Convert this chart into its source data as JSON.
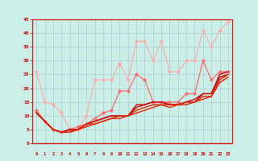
{
  "background_color": "#cceee8",
  "grid_color": "#aacccc",
  "xlabel_color": "#cc0000",
  "tick_color": "#cc0000",
  "xlim": [
    -0.5,
    23.5
  ],
  "ylim": [
    0,
    45
  ],
  "yticks": [
    0,
    5,
    10,
    15,
    20,
    25,
    30,
    35,
    40,
    45
  ],
  "xticks": [
    0,
    1,
    2,
    3,
    4,
    5,
    6,
    7,
    8,
    9,
    10,
    11,
    12,
    13,
    14,
    15,
    16,
    17,
    18,
    19,
    20,
    21,
    22,
    23
  ],
  "series": [
    {
      "x": [
        0,
        1,
        2,
        3,
        4,
        5,
        6,
        7,
        8,
        9,
        10,
        11,
        12,
        13,
        14,
        15,
        16,
        17,
        18,
        19,
        20,
        21,
        22,
        23
      ],
      "y": [
        26,
        15,
        14,
        11,
        5,
        5,
        10,
        23,
        23,
        23,
        29,
        23,
        37,
        37,
        30,
        37,
        26,
        26,
        30,
        30,
        41,
        35,
        41,
        44
      ],
      "color": "#ffaaaa",
      "lw": 0.8,
      "marker": "D",
      "ms": 2.0
    },
    {
      "x": [
        0,
        1,
        2,
        3,
        4,
        5,
        6,
        7,
        8,
        9,
        10,
        11,
        12,
        13,
        14,
        15,
        16,
        17,
        18,
        19,
        20,
        21,
        22,
        23
      ],
      "y": [
        12,
        8,
        5,
        4,
        5,
        6,
        7,
        9,
        11,
        12,
        19,
        19,
        25,
        23,
        15,
        15,
        15,
        15,
        18,
        18,
        30,
        23,
        26,
        26
      ],
      "color": "#ff6666",
      "lw": 0.9,
      "marker": "P",
      "ms": 2.5
    },
    {
      "x": [
        0,
        1,
        2,
        3,
        4,
        5,
        6,
        7,
        8,
        9,
        10,
        11,
        12,
        13,
        14,
        15,
        16,
        17,
        18,
        19,
        20,
        21,
        22,
        23
      ],
      "y": [
        11,
        8,
        5,
        4,
        5,
        5,
        7,
        8,
        9,
        10,
        10,
        10,
        14,
        14,
        15,
        15,
        14,
        14,
        15,
        16,
        18,
        18,
        25,
        26
      ],
      "color": "#cc0000",
      "lw": 1.0,
      "marker": null,
      "ms": 0
    },
    {
      "x": [
        0,
        1,
        2,
        3,
        4,
        5,
        6,
        7,
        8,
        9,
        10,
        11,
        12,
        13,
        14,
        15,
        16,
        17,
        18,
        19,
        20,
        21,
        22,
        23
      ],
      "y": [
        11,
        8,
        5,
        4,
        5,
        5,
        7,
        8,
        9,
        10,
        10,
        10,
        13,
        14,
        15,
        15,
        14,
        14,
        15,
        15,
        18,
        18,
        24,
        25
      ],
      "color": "#cc0000",
      "lw": 1.0,
      "marker": null,
      "ms": 0
    },
    {
      "x": [
        0,
        1,
        2,
        3,
        4,
        5,
        6,
        7,
        8,
        9,
        10,
        11,
        12,
        13,
        14,
        15,
        16,
        17,
        18,
        19,
        20,
        21,
        22,
        23
      ],
      "y": [
        11,
        8,
        5,
        4,
        4,
        5,
        7,
        7,
        8,
        9,
        10,
        10,
        12,
        13,
        14,
        14,
        14,
        14,
        15,
        15,
        17,
        17,
        23,
        25
      ],
      "color": "#dd2200",
      "lw": 1.0,
      "marker": null,
      "ms": 0
    },
    {
      "x": [
        0,
        1,
        2,
        3,
        4,
        5,
        6,
        7,
        8,
        9,
        10,
        11,
        12,
        13,
        14,
        15,
        16,
        17,
        18,
        19,
        20,
        21,
        22,
        23
      ],
      "y": [
        11,
        8,
        5,
        4,
        4,
        5,
        6,
        7,
        8,
        9,
        9,
        10,
        11,
        12,
        13,
        14,
        13,
        14,
        14,
        15,
        16,
        17,
        22,
        24
      ],
      "color": "#dd2200",
      "lw": 1.0,
      "marker": null,
      "ms": 0
    }
  ]
}
